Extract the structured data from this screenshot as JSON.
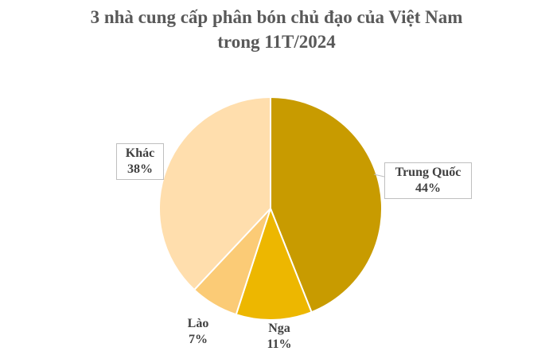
{
  "chart_data": {
    "type": "pie",
    "title_line1": "3 nhà cung cấp phân bón chủ đạo của Việt Nam",
    "title_line2": "trong 11T/2024",
    "slices": [
      {
        "name": "Trung Quốc",
        "value": 44,
        "label": "44%",
        "color": "#C89B00"
      },
      {
        "name": "Nga",
        "value": 11,
        "label": "11%",
        "color": "#EDB700"
      },
      {
        "name": "Lào",
        "value": 7,
        "label": "7%",
        "color": "#FBCB76"
      },
      {
        "name": "Khác",
        "value": 38,
        "label": "38%",
        "color": "#FFDEAD"
      }
    ]
  }
}
